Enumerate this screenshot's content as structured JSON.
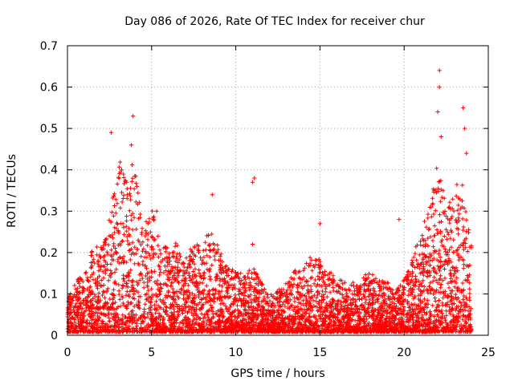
{
  "chart_data": {
    "type": "scatter",
    "title": "Day 086 of 2026, Rate Of TEC Index for receiver chur",
    "xlabel": "GPS time / hours",
    "ylabel": "ROTI / TECUs",
    "xlim": [
      0,
      25
    ],
    "ylim": [
      0,
      0.7
    ],
    "xticks": [
      "0",
      "5",
      "10",
      "15",
      "20",
      "25"
    ],
    "yticks": [
      "0",
      "0.1",
      "0.2",
      "0.3",
      "0.4",
      "0.5",
      "0.6",
      "0.7"
    ],
    "grid": true,
    "marker": "+",
    "series": [
      {
        "color": "#ff0000",
        "envelope_x": [
          0,
          0.5,
          1,
          1.5,
          2,
          2.5,
          2.8,
          3,
          3.3,
          3.6,
          3.9,
          4.2,
          4.5,
          5,
          5.5,
          6,
          6.5,
          7,
          7.5,
          8,
          8.5,
          9,
          9.5,
          10,
          10.5,
          11,
          11.5,
          12,
          12.5,
          13,
          13.5,
          14,
          14.5,
          15,
          15.5,
          16,
          16.5,
          17,
          17.5,
          18,
          18.5,
          19,
          19.5,
          20,
          20.5,
          21,
          21.5,
          22,
          22.5,
          23,
          23.3,
          23.6,
          24
        ],
        "envelope_y": [
          0.08,
          0.12,
          0.15,
          0.2,
          0.22,
          0.28,
          0.38,
          0.42,
          0.4,
          0.35,
          0.42,
          0.34,
          0.25,
          0.3,
          0.22,
          0.2,
          0.22,
          0.18,
          0.22,
          0.2,
          0.26,
          0.2,
          0.16,
          0.15,
          0.14,
          0.16,
          0.12,
          0.09,
          0.1,
          0.12,
          0.15,
          0.16,
          0.2,
          0.18,
          0.15,
          0.13,
          0.12,
          0.12,
          0.14,
          0.15,
          0.13,
          0.12,
          0.1,
          0.13,
          0.18,
          0.25,
          0.3,
          0.42,
          0.3,
          0.34,
          0.38,
          0.36,
          0.24
        ],
        "isolated_points": [
          {
            "x": 2.6,
            "y": 0.49
          },
          {
            "x": 3.9,
            "y": 0.53
          },
          {
            "x": 3.8,
            "y": 0.46
          },
          {
            "x": 5.3,
            "y": 0.3
          },
          {
            "x": 8.6,
            "y": 0.34
          },
          {
            "x": 11.1,
            "y": 0.38
          },
          {
            "x": 11.0,
            "y": 0.37
          },
          {
            "x": 11.0,
            "y": 0.22
          },
          {
            "x": 15.0,
            "y": 0.27
          },
          {
            "x": 19.7,
            "y": 0.28
          },
          {
            "x": 22.1,
            "y": 0.64
          },
          {
            "x": 22.1,
            "y": 0.6
          },
          {
            "x": 22.0,
            "y": 0.54
          },
          {
            "x": 22.2,
            "y": 0.48
          },
          {
            "x": 23.5,
            "y": 0.55
          },
          {
            "x": 23.6,
            "y": 0.5
          },
          {
            "x": 23.7,
            "y": 0.44
          }
        ]
      }
    ]
  }
}
